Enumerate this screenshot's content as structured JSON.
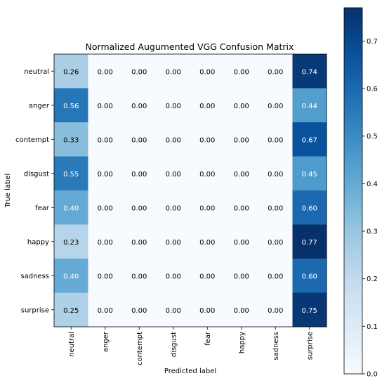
{
  "chart_data": {
    "type": "heatmap",
    "title": "Normalized Augumented VGG Confusion Matrix",
    "xlabel": "Predicted label",
    "ylabel": "True label",
    "x_categories": [
      "neutral",
      "anger",
      "contempt",
      "disgust",
      "fear",
      "happy",
      "sadness",
      "surprise"
    ],
    "y_categories": [
      "neutral",
      "anger",
      "contempt",
      "disgust",
      "fear",
      "happy",
      "sadness",
      "surprise"
    ],
    "values": [
      [
        0.26,
        0.0,
        0.0,
        0.0,
        0.0,
        0.0,
        0.0,
        0.74
      ],
      [
        0.56,
        0.0,
        0.0,
        0.0,
        0.0,
        0.0,
        0.0,
        0.44
      ],
      [
        0.33,
        0.0,
        0.0,
        0.0,
        0.0,
        0.0,
        0.0,
        0.67
      ],
      [
        0.55,
        0.0,
        0.0,
        0.0,
        0.0,
        0.0,
        0.0,
        0.45
      ],
      [
        0.4,
        0.0,
        0.0,
        0.0,
        0.0,
        0.0,
        0.0,
        0.6
      ],
      [
        0.23,
        0.0,
        0.0,
        0.0,
        0.0,
        0.0,
        0.0,
        0.77
      ],
      [
        0.4,
        0.0,
        0.0,
        0.0,
        0.0,
        0.0,
        0.0,
        0.6
      ],
      [
        0.25,
        0.0,
        0.0,
        0.0,
        0.0,
        0.0,
        0.0,
        0.75
      ]
    ],
    "colorbar": {
      "range": [
        0.0,
        0.77
      ],
      "ticks": [
        0.0,
        0.1,
        0.2,
        0.3,
        0.4,
        0.5,
        0.6,
        0.7
      ],
      "tick_labels": [
        "0.0",
        "0.1",
        "0.2",
        "0.3",
        "0.4",
        "0.5",
        "0.6",
        "0.7"
      ]
    },
    "colormap": "Blues",
    "cell_text_threshold": 0.385,
    "grid": false
  }
}
